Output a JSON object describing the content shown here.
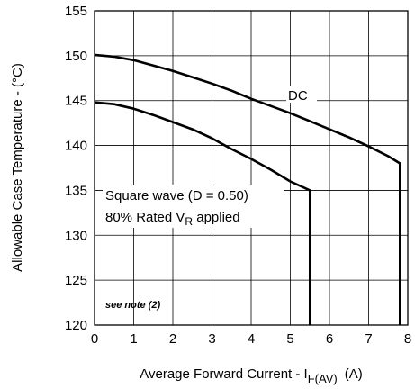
{
  "chart_data": {
    "type": "line",
    "xlabel": "Average Forward Current - I",
    "xlabel_sub": "F(AV)",
    "xlabel_unit": "(A)",
    "ylabel": "Allowable Case Temperature - (°C)",
    "xlim": [
      0,
      8
    ],
    "ylim": [
      120,
      155
    ],
    "x_ticks": [
      "0",
      "1",
      "2",
      "3",
      "4",
      "5",
      "6",
      "7",
      "8"
    ],
    "y_ticks": [
      "155",
      "150",
      "145",
      "140",
      "135",
      "130",
      "125",
      "120"
    ],
    "grid": true,
    "series": [
      {
        "name": "DC",
        "x": [
          0,
          0.5,
          1,
          1.5,
          2,
          2.5,
          3,
          3.5,
          4,
          4.5,
          5,
          5.5,
          6,
          6.5,
          7,
          7.5,
          7.8,
          7.8
        ],
        "y": [
          150.1,
          149.9,
          149.5,
          148.9,
          148.3,
          147.6,
          146.9,
          146.1,
          145.2,
          144.4,
          143.6,
          142.7,
          141.8,
          140.9,
          139.9,
          138.8,
          138.0,
          120
        ]
      },
      {
        "name": "Square wave (D = 0.50)",
        "x": [
          0,
          0.5,
          1,
          1.5,
          2,
          2.5,
          3,
          3.5,
          4,
          4.5,
          5,
          5.5,
          5.5
        ],
        "y": [
          144.8,
          144.6,
          144.1,
          143.4,
          142.6,
          141.8,
          140.8,
          139.6,
          138.5,
          137.3,
          136.0,
          135.0,
          120
        ]
      }
    ],
    "annotations": {
      "dc_label": "DC",
      "square_line1": "Square wave (D = 0.50)",
      "square_line2_prefix": "80% Rated V",
      "square_line2_sub": "R",
      "square_line2_suffix": " applied",
      "note": "see note (2)"
    }
  }
}
